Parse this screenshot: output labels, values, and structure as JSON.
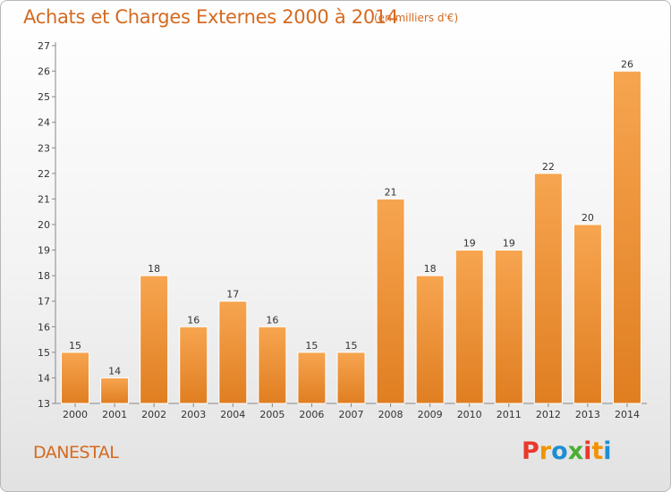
{
  "header": {
    "title": "Achats et Charges Externes 2000 à 2014",
    "subtitle": "(en milliers d'€)"
  },
  "footer": {
    "commune": "DANESTAL",
    "logo_text": "Proxiti",
    "logo_colors": [
      "#e8392a",
      "#f39200",
      "#1d8fd1",
      "#4cae32",
      "#e8392a",
      "#f39200",
      "#1d8fd1"
    ]
  },
  "colors": {
    "bar_top": "#f7a550",
    "bar_bottom": "#e07e21",
    "title": "#d56a1f",
    "axis": "#888888"
  },
  "chart_data": {
    "type": "bar",
    "title": "Achats et Charges Externes 2000 à 2014",
    "subtitle": "(en milliers d'€)",
    "categories": [
      "2000",
      "2001",
      "2002",
      "2003",
      "2004",
      "2005",
      "2006",
      "2007",
      "2008",
      "2009",
      "2010",
      "2011",
      "2012",
      "2013",
      "2014"
    ],
    "values": [
      15,
      14,
      18,
      16,
      17,
      16,
      15,
      15,
      21,
      18,
      19,
      19,
      22,
      20,
      26
    ],
    "ylim": [
      13,
      27
    ],
    "yticks": [
      13,
      14,
      15,
      16,
      17,
      18,
      19,
      20,
      21,
      22,
      23,
      24,
      25,
      26,
      27
    ],
    "grid": false,
    "data_labels": true
  }
}
